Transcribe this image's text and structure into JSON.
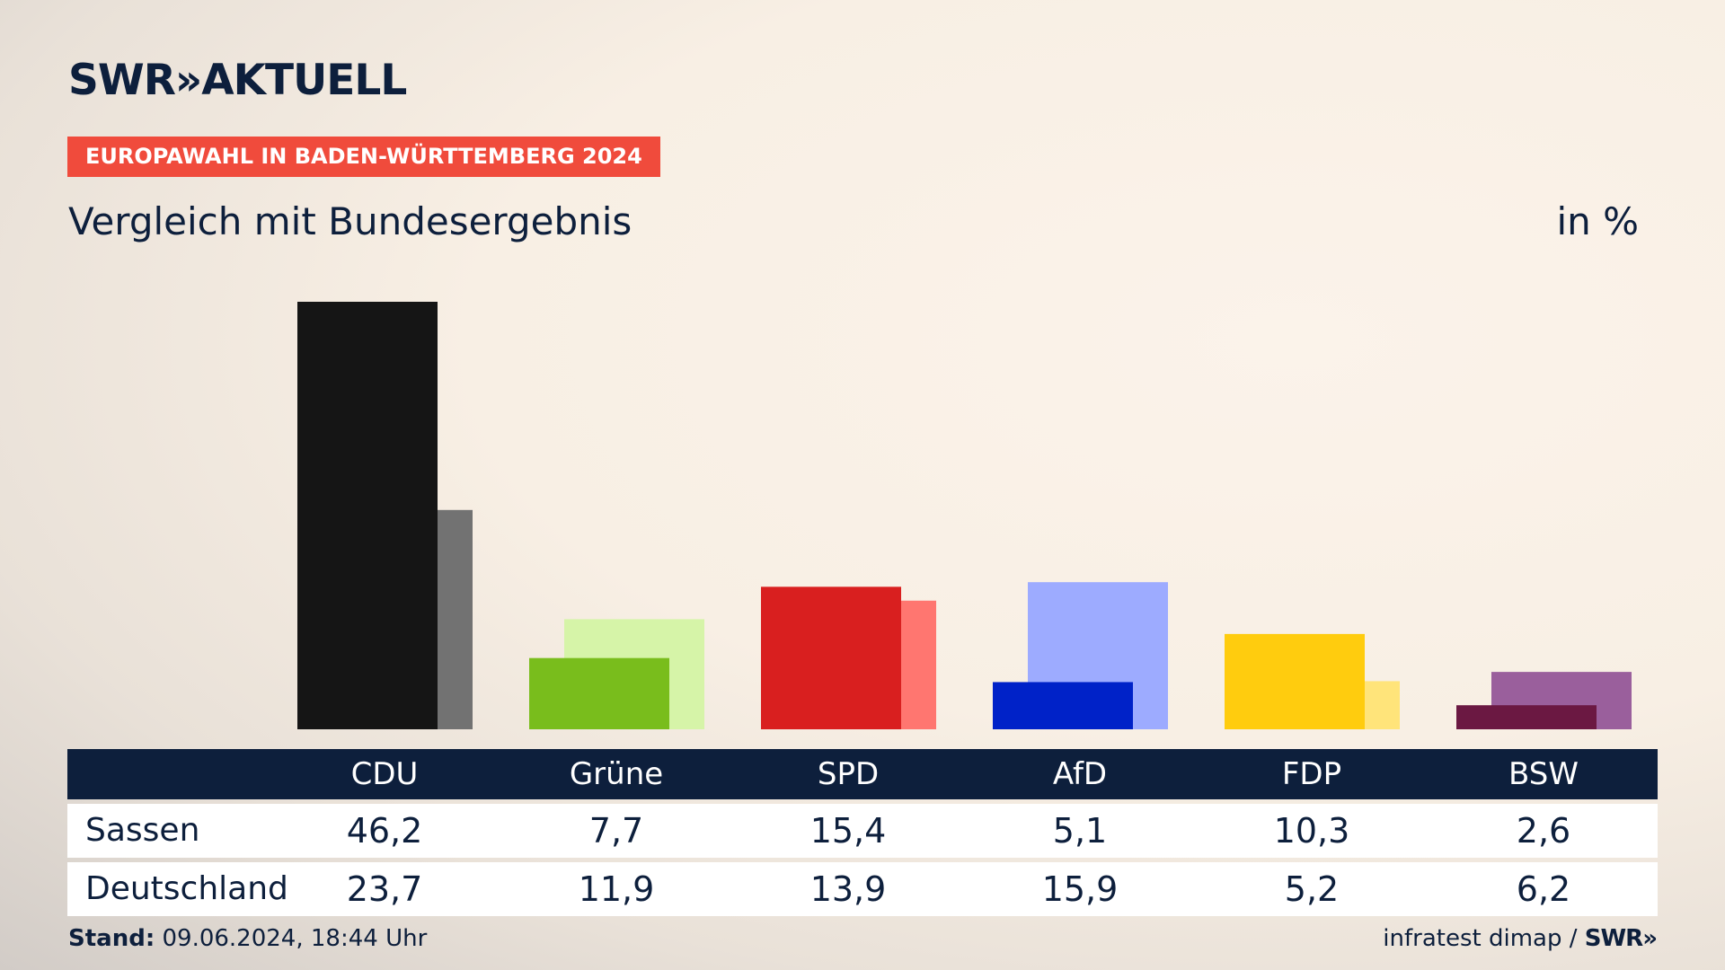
{
  "header": {
    "brand": "SWR",
    "brand_arrows": "»",
    "brand_name": "AKTUELL",
    "tag": "EUROPAWAHL IN BADEN-WÜRTTEMBERG 2024",
    "subtitle": "Vergleich mit Bundesergebnis",
    "unit": "in %"
  },
  "chart_data": {
    "type": "bar",
    "categories": [
      "CDU",
      "Grüne",
      "SPD",
      "AfD",
      "FDP",
      "BSW"
    ],
    "series": [
      {
        "name": "Sassen",
        "values": [
          46.2,
          7.7,
          15.4,
          5.1,
          10.3,
          2.6
        ],
        "colors": [
          "#151515",
          "#79bd1c",
          "#d91f1f",
          "#0022c8",
          "#ffcc0e",
          "#6b1842"
        ]
      },
      {
        "name": "Deutschland",
        "values": [
          23.7,
          11.9,
          13.9,
          15.9,
          5.2,
          6.2
        ],
        "colors": [
          "#727272",
          "#d6f4a8",
          "#ff7670",
          "#9dabff",
          "#ffe47a",
          "#9a5f9c"
        ]
      }
    ],
    "ylim": [
      0,
      50
    ],
    "grid": false,
    "legend": "none"
  },
  "table": {
    "headers": [
      "CDU",
      "Grüne",
      "SPD",
      "AfD",
      "FDP",
      "BSW"
    ],
    "rows": [
      {
        "label": "Sassen",
        "values": [
          "46,2",
          "7,7",
          "15,4",
          "5,1",
          "10,3",
          "2,6"
        ]
      },
      {
        "label": "Deutschland",
        "values": [
          "23,7",
          "11,9",
          "13,9",
          "15,9",
          "5,2",
          "6,2"
        ]
      }
    ]
  },
  "footer": {
    "stand_label": "Stand:",
    "stand_value": "09.06.2024, 18:44 Uhr",
    "source": "infratest dimap /",
    "source_logo": "SWR»"
  }
}
